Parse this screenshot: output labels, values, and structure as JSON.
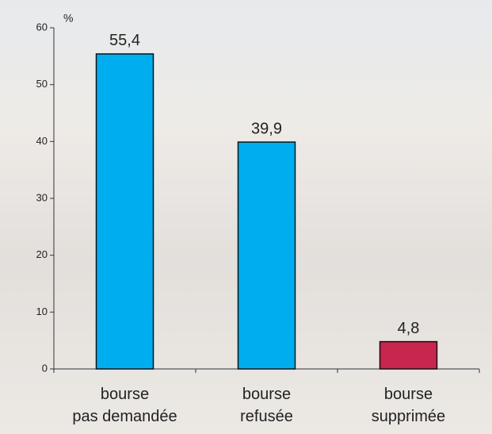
{
  "chart_data": {
    "type": "bar",
    "y_label": "%",
    "categories": [
      "bourse\npas demandée",
      "bourse\nrefusée",
      "bourse\nsupprimée"
    ],
    "values": [
      55.4,
      39.9,
      4.8
    ],
    "value_labels": [
      "55,4",
      "39,9",
      "4,8"
    ],
    "colors": [
      "#00aeef",
      "#00aeef",
      "#c8254f"
    ],
    "ylim": [
      0,
      60
    ],
    "yticks": [
      0,
      10,
      20,
      30,
      40,
      50,
      60
    ]
  }
}
